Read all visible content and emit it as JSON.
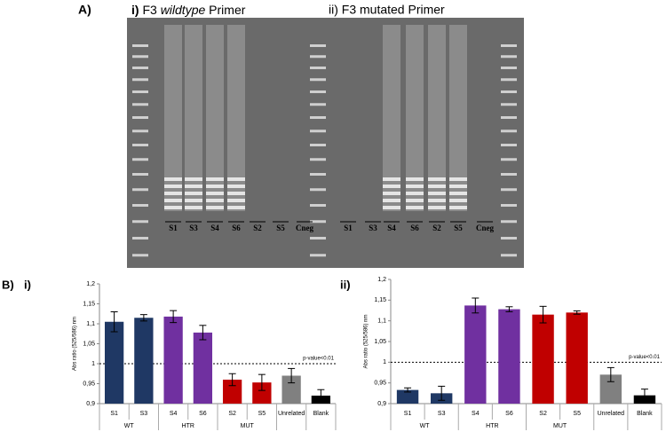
{
  "gel": {
    "label": "A)",
    "left_title": {
      "number": "i)",
      "prefix": "F3",
      "italic": "wildtype",
      "suffix": "Primer"
    },
    "right_title": "ii) F3 mutated Primer",
    "left_lanes": [
      "S1",
      "S3",
      "S4",
      "S6",
      "S2",
      "S5",
      "Cneg"
    ],
    "right_lanes": [
      "S1",
      "S3",
      "S4",
      "S6",
      "S2",
      "S5",
      "Cneg"
    ]
  },
  "panel_b_label": "B)",
  "chart_data": [
    {
      "type": "bar",
      "panel": "i)",
      "ylabel": "Abs ratio (525/586) nm",
      "categories": [
        "S1",
        "S3",
        "S4",
        "S6",
        "S2",
        "S5",
        "Unrelated",
        "Blank"
      ],
      "groups": [
        "WT",
        "HTR",
        "MUT"
      ],
      "values": [
        1.105,
        1.115,
        1.118,
        1.078,
        0.96,
        0.953,
        0.97,
        0.92
      ],
      "errors": [
        0.025,
        0.008,
        0.015,
        0.018,
        0.015,
        0.02,
        0.018,
        0.015
      ],
      "colors": [
        "#1f3864",
        "#1f3864",
        "#7030a0",
        "#7030a0",
        "#c00000",
        "#c00000",
        "#808080",
        "#000000"
      ],
      "ylim": [
        0.9,
        1.2
      ],
      "yticks": [
        {
          "value": 0.9,
          "label": "0,9"
        },
        {
          "value": 0.95,
          "label": "0,95"
        },
        1,
        {
          "value": 1.05,
          "label": "1,05"
        },
        {
          "value": 1.1,
          "label": "1,1"
        },
        {
          "value": 1.15,
          "label": "1,15"
        },
        {
          "value": 1.2,
          "label": "1,2"
        }
      ],
      "reference_line": 1,
      "annotation": "p-value<0.01"
    },
    {
      "type": "bar",
      "panel": "ii)",
      "ylabel": "Abs ratio (525/586) nm",
      "categories": [
        "S1",
        "S3",
        "S4",
        "S6",
        "S2",
        "S5",
        "Unrelated",
        "Blank"
      ],
      "groups": [
        "WT",
        "HTR",
        "MUT"
      ],
      "values": [
        0.933,
        0.925,
        1.137,
        1.128,
        1.115,
        1.12,
        0.97,
        0.92
      ],
      "errors": [
        0.005,
        0.017,
        0.018,
        0.006,
        0.02,
        0.004,
        0.017,
        0.015
      ],
      "colors": [
        "#1f3864",
        "#1f3864",
        "#7030a0",
        "#7030a0",
        "#c00000",
        "#c00000",
        "#808080",
        "#000000"
      ],
      "ylim": [
        0.9,
        1.2
      ],
      "yticks": [
        {
          "value": 0.9,
          "label": "0,9"
        },
        {
          "value": 0.95,
          "label": "0,95"
        },
        1,
        {
          "value": 1.05,
          "label": "1,05"
        },
        {
          "value": 1.1,
          "label": "1,1"
        },
        {
          "value": 1.15,
          "label": "1,15"
        },
        {
          "value": 1.2,
          "label": "1,2"
        }
      ],
      "reference_line": 1,
      "annotation": "p-value<0.01"
    }
  ]
}
